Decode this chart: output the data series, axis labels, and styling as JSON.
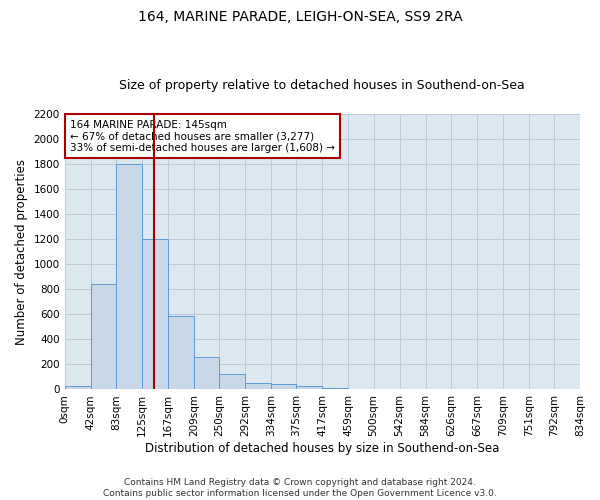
{
  "title_line1": "164, MARINE PARADE, LEIGH-ON-SEA, SS9 2RA",
  "title_line2": "Size of property relative to detached houses in Southend-on-Sea",
  "xlabel": "Distribution of detached houses by size in Southend-on-Sea",
  "ylabel": "Number of detached properties",
  "footnote": "Contains HM Land Registry data © Crown copyright and database right 2024.\nContains public sector information licensed under the Open Government Licence v3.0.",
  "bar_values": [
    25,
    845,
    1800,
    1200,
    590,
    260,
    125,
    50,
    45,
    30,
    15,
    0,
    0,
    0,
    0,
    0,
    0,
    0,
    0
  ],
  "bin_labels": [
    "0sqm",
    "42sqm",
    "83sqm",
    "125sqm",
    "167sqm",
    "209sqm",
    "250sqm",
    "292sqm",
    "334sqm",
    "375sqm",
    "417sqm",
    "459sqm",
    "500sqm",
    "542sqm",
    "584sqm",
    "626sqm",
    "667sqm",
    "709sqm",
    "751sqm",
    "792sqm",
    "834sqm"
  ],
  "bin_edges": [
    0,
    42,
    83,
    125,
    167,
    209,
    250,
    292,
    334,
    375,
    417,
    459,
    500,
    542,
    584,
    626,
    667,
    709,
    751,
    792,
    834
  ],
  "bar_color": "#c8d8e8",
  "bar_edge_color": "#5b9bd5",
  "vline_x": 145,
  "vline_color": "#aa0000",
  "annotation_text": "164 MARINE PARADE: 145sqm\n← 67% of detached houses are smaller (3,277)\n33% of semi-detached houses are larger (1,608) →",
  "annotation_box_color": "#ffffff",
  "annotation_box_edge": "#aa0000",
  "ylim": [
    0,
    2200
  ],
  "yticks": [
    0,
    200,
    400,
    600,
    800,
    1000,
    1200,
    1400,
    1600,
    1800,
    2000,
    2200
  ],
  "grid_color": "#c0c8d8",
  "background_color": "#dce8f0",
  "title_fontsize": 10,
  "subtitle_fontsize": 9,
  "axis_label_fontsize": 8.5,
  "tick_fontsize": 7.5,
  "annotation_fontsize": 7.5,
  "footnote_fontsize": 6.5
}
